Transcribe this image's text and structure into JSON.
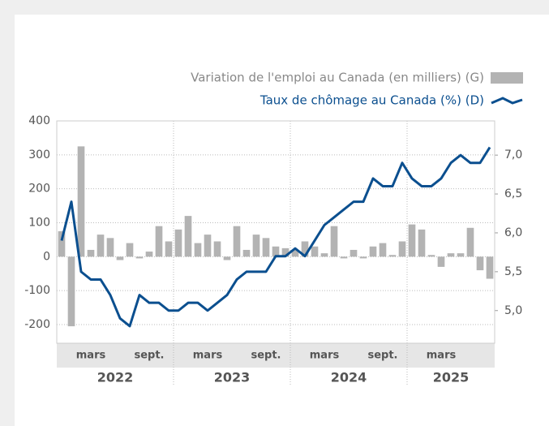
{
  "chart_data": {
    "type": "bar-line",
    "series": [
      {
        "name": "Variation de l'emploi au Canada (en milliers) (G)",
        "type": "bar",
        "color": "#b3b3b3",
        "axis": "y",
        "values": [
          75,
          -205,
          325,
          20,
          65,
          55,
          -10,
          40,
          -5,
          15,
          90,
          45,
          80,
          120,
          40,
          65,
          45,
          -10,
          90,
          20,
          65,
          55,
          30,
          25,
          20,
          45,
          30,
          10,
          90,
          -5,
          20,
          -5,
          30,
          40,
          5,
          45,
          95,
          80,
          5,
          -30,
          10,
          10,
          85,
          -40,
          -65
        ]
      },
      {
        "name": "Taux de chômage au Canada (%) (D)",
        "type": "line",
        "color": "#0b4f8f",
        "axis": "y2",
        "values": [
          5.9,
          6.4,
          5.5,
          5.4,
          5.4,
          5.2,
          4.9,
          4.8,
          5.2,
          5.1,
          5.1,
          5.0,
          5.0,
          5.1,
          5.1,
          5.0,
          5.1,
          5.2,
          5.4,
          5.5,
          5.5,
          5.5,
          5.7,
          5.7,
          5.8,
          5.7,
          5.9,
          6.1,
          6.2,
          6.3,
          6.4,
          6.4,
          6.7,
          6.6,
          6.6,
          6.9,
          6.7,
          6.6,
          6.6,
          6.7,
          6.9,
          7.0,
          6.9,
          6.9,
          7.1
        ]
      }
    ],
    "categories": [
      null,
      null,
      "mars",
      null,
      null,
      null,
      null,
      null,
      "sept.",
      null,
      null,
      null,
      null,
      null,
      "mars",
      null,
      null,
      null,
      null,
      null,
      "sept.",
      null,
      null,
      null,
      null,
      null,
      "mars",
      null,
      null,
      null,
      null,
      null,
      "sept.",
      null,
      null,
      null,
      null,
      null,
      "mars",
      null,
      null,
      null,
      null,
      null,
      null
    ],
    "years": [
      "2022",
      "2023",
      "2024",
      "2025"
    ],
    "ylim": [
      -255,
      400
    ],
    "yticks": [
      -200,
      -100,
      0,
      100,
      200,
      300,
      400
    ],
    "y2lim": [
      4.58,
      7.44
    ],
    "y2ticks": [
      {
        "value": 5.0,
        "label": "5,0"
      },
      {
        "value": 5.5,
        "label": "5,5"
      },
      {
        "value": 6.0,
        "label": "6,0"
      },
      {
        "value": 6.5,
        "label": "6,5"
      },
      {
        "value": 7.0,
        "label": "7,0"
      }
    ],
    "grid": true
  }
}
